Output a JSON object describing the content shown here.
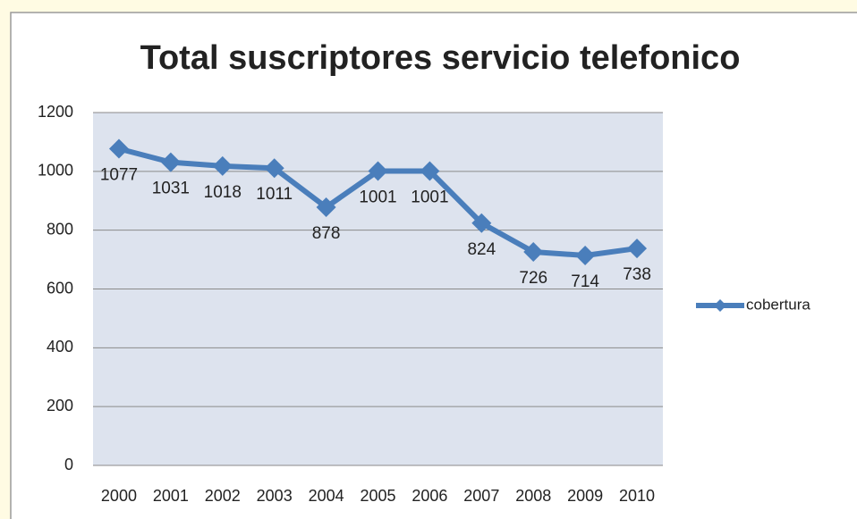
{
  "chart_data": {
    "type": "line",
    "title": "Total suscriptores servicio telefonico",
    "categories": [
      "2000",
      "2001",
      "2002",
      "2003",
      "2004",
      "2005",
      "2006",
      "2007",
      "2008",
      "2009",
      "2010"
    ],
    "series": [
      {
        "name": "cobertura",
        "color": "#4a7ebb",
        "values": [
          1077,
          1031,
          1018,
          1011,
          878,
          1001,
          1001,
          824,
          726,
          714,
          738
        ]
      }
    ],
    "ylim": [
      0,
      1200
    ],
    "yticks": [
      0,
      200,
      400,
      600,
      800,
      1000,
      1200
    ],
    "grid": true,
    "legend": "right"
  }
}
